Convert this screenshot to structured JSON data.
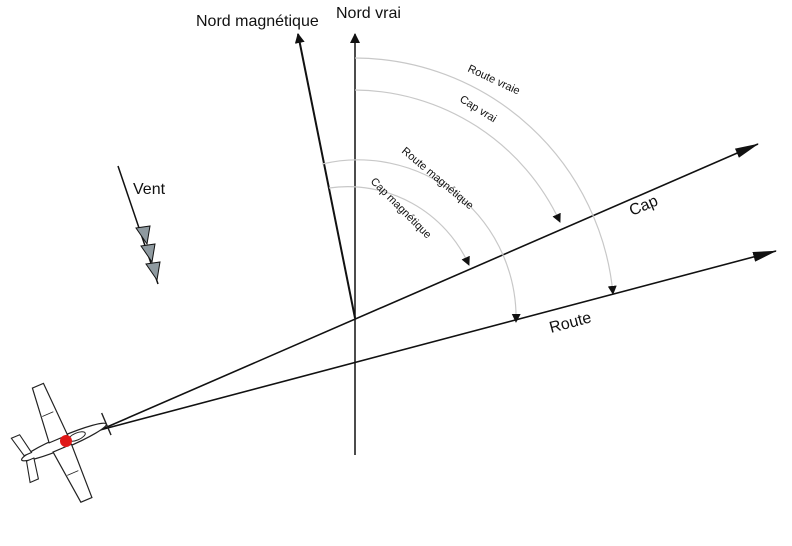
{
  "diagram": {
    "labels": {
      "magnetic_north": "Nord magnétique",
      "true_north": "Nord vrai",
      "wind": "Vent",
      "true_track": "Route vraie",
      "true_heading": "Cap vrai",
      "magnetic_track": "Route magnétique",
      "magnetic_heading": "Cap magnétique",
      "heading": "Cap",
      "track": "Route"
    },
    "colors": {
      "line": "#111111",
      "arc": "#c8c8c8",
      "wind_fill": "#8f9aa0",
      "aircraft_marker": "#e01818"
    }
  }
}
